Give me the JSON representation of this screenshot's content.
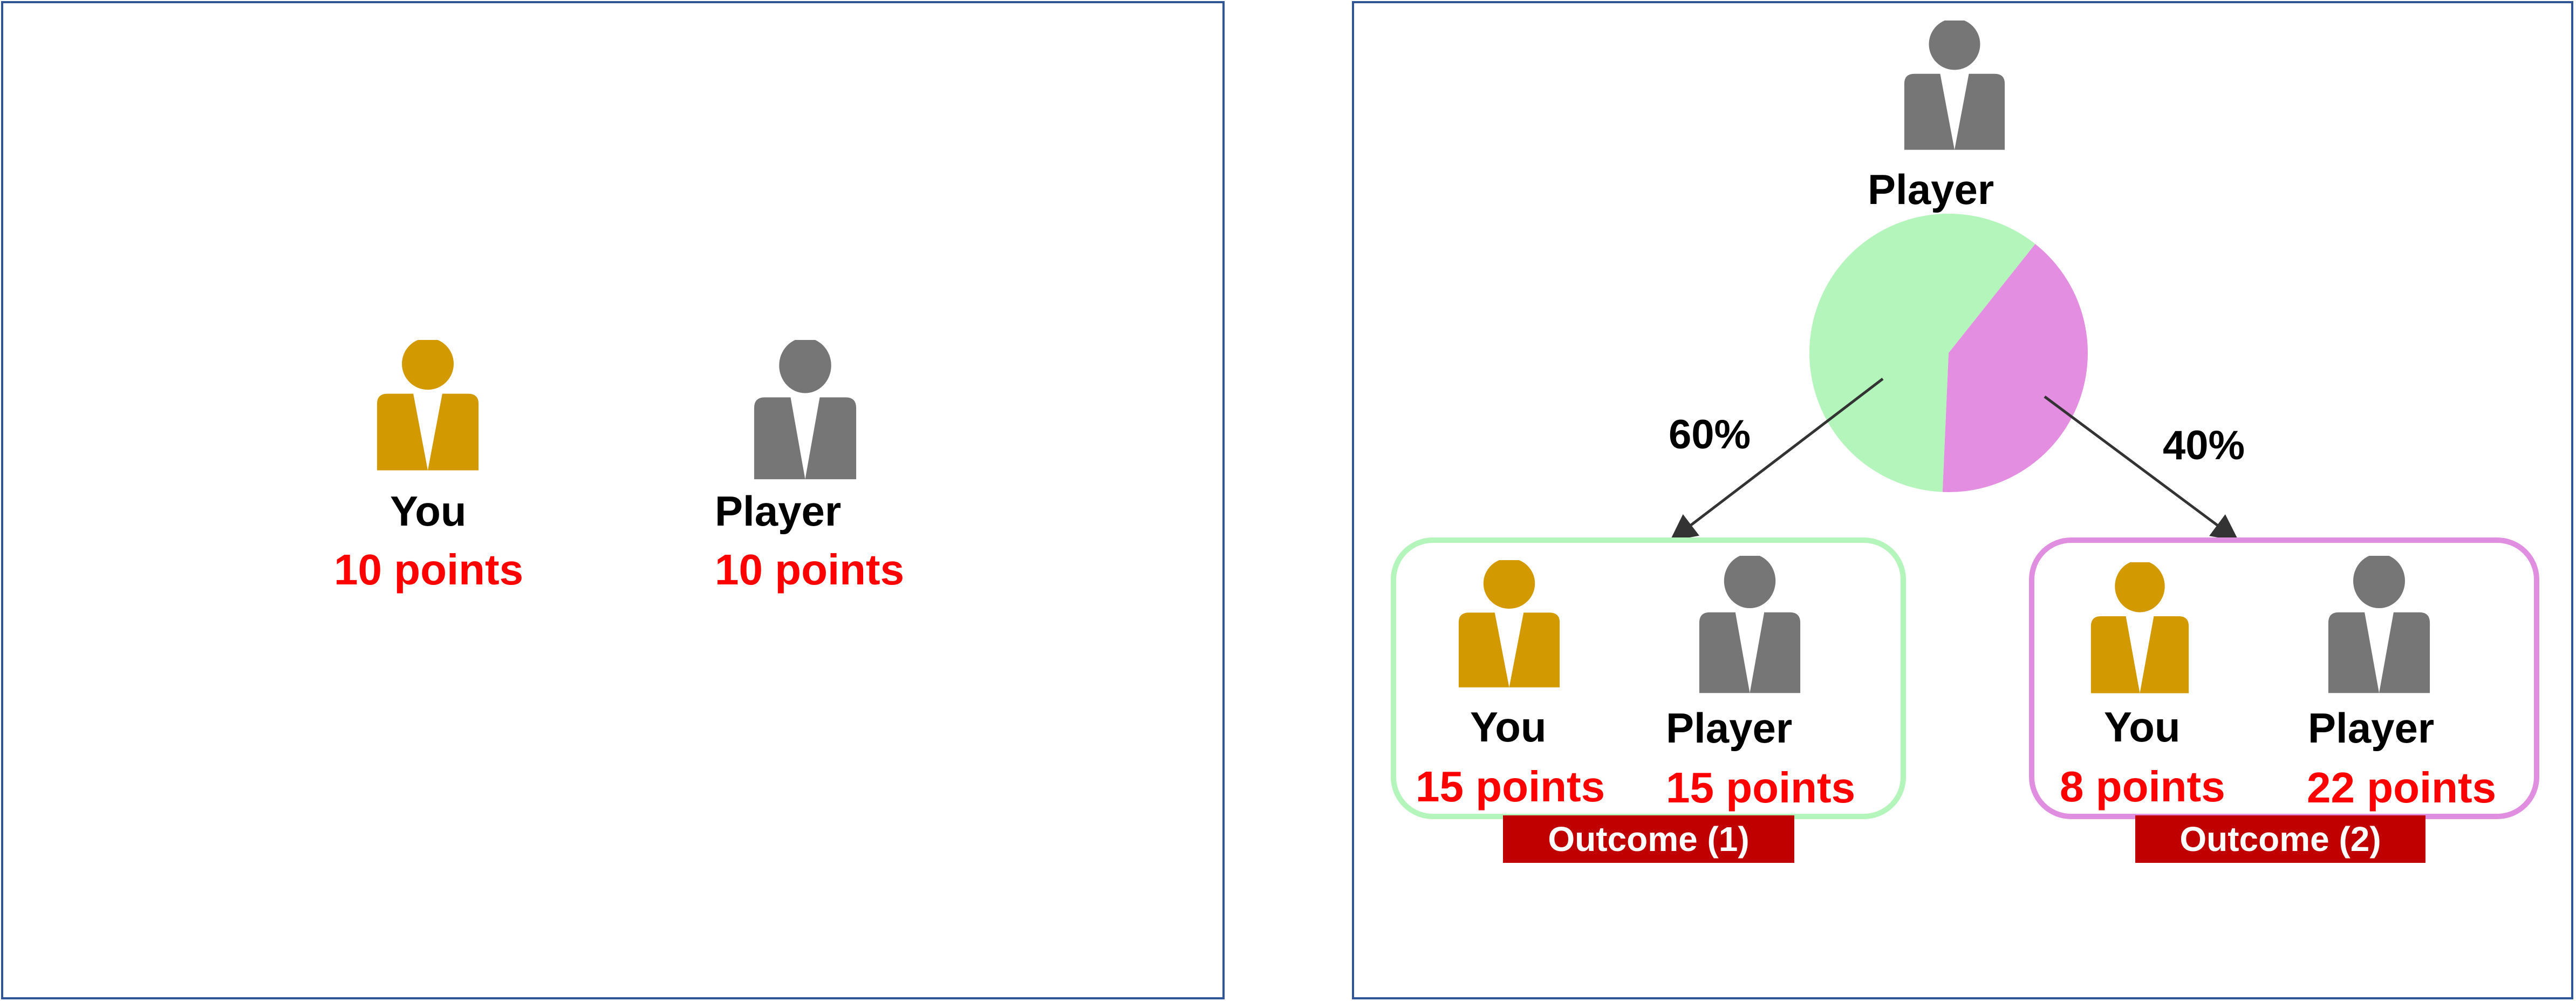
{
  "colors": {
    "you": "#d29a00",
    "player": "#767676",
    "points": "#ff0000",
    "panel_border": "#2f5597",
    "pie_green": "#b3f5bb",
    "pie_pink": "#e38ee0",
    "outcome_tag": "#c00000"
  },
  "left_panel": {
    "you": {
      "name": "You",
      "points": "10 points",
      "icon": "person-icon"
    },
    "player": {
      "name": "Player",
      "points": "10 points",
      "icon": "person-icon"
    }
  },
  "right_panel": {
    "chooser": {
      "name": "Player",
      "icon": "person-icon"
    },
    "chart_data": {
      "type": "pie",
      "slices": [
        {
          "label": "60%",
          "value": 60,
          "color": "#b3f5bb"
        },
        {
          "label": "40%",
          "value": 40,
          "color": "#e38ee0"
        }
      ]
    },
    "outcome_1": {
      "percent": "60%",
      "you": {
        "name": "You",
        "points": "15 points"
      },
      "player": {
        "name": "Player",
        "points": "15 points"
      },
      "tag": "Outcome (1)"
    },
    "outcome_2": {
      "percent": "40%",
      "you": {
        "name": "You",
        "points": "8 points"
      },
      "player": {
        "name": "Player",
        "points": "22 points"
      },
      "tag": "Outcome (2)"
    }
  }
}
